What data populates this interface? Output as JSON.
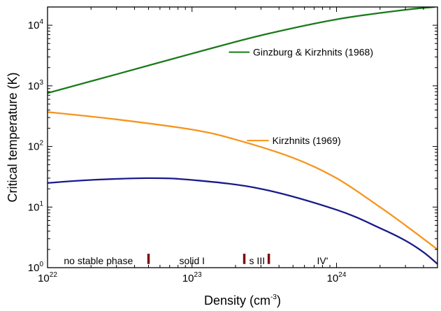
{
  "chart_data": {
    "type": "line",
    "xlabel": "Density (cm",
    "xlabel_exp": "-3",
    "xlabel_close": ")",
    "ylabel": "Critical temperature (K)",
    "x_scale": "log",
    "y_scale": "log",
    "xlim": [
      1e+22,
      5e+24
    ],
    "ylim": [
      1,
      20000
    ],
    "x_ticks": [
      {
        "value": 1e+22,
        "base": "10",
        "exp": "22"
      },
      {
        "value": 1e+23,
        "base": "10",
        "exp": "23"
      },
      {
        "value": 1e+24,
        "base": "10",
        "exp": "24"
      }
    ],
    "y_ticks": [
      {
        "value": 1,
        "base": "10",
        "exp": "0"
      },
      {
        "value": 10,
        "base": "10",
        "exp": "1"
      },
      {
        "value": 100,
        "base": "10",
        "exp": "2"
      },
      {
        "value": 1000,
        "base": "10",
        "exp": "3"
      },
      {
        "value": 10000,
        "base": "10",
        "exp": "4"
      }
    ],
    "series": [
      {
        "color": "#1a7a1a",
        "x": [
          1e+22,
          3e+22,
          1e+23,
          3e+23,
          1e+24,
          3e+24,
          4.8e+24
        ],
        "y": [
          760,
          1550,
          3400,
          6800,
          12500,
          18000,
          20000
        ]
      },
      {
        "color": "#f7941d",
        "x": [
          1e+22,
          3e+22,
          1e+23,
          2e+23,
          5e+23,
          1e+24,
          2e+24,
          3e+24,
          5e+24
        ],
        "y": [
          370,
          280,
          190,
          130,
          65,
          30,
          10,
          5,
          2
        ]
      },
      {
        "color": "#1a1a8a",
        "x": [
          1e+22,
          2e+22,
          5e+22,
          1e+23,
          3e+23,
          1e+24,
          2e+24,
          3e+24,
          4e+24,
          5e+24
        ],
        "y": [
          25,
          28,
          30,
          28,
          20,
          9,
          4.5,
          2.8,
          1.8,
          1.15
        ]
      }
    ],
    "annotations": [
      {
        "text": "Ginzburg & Kirzhnits (1968)",
        "leader_x": [
          1.8e+23,
          2.5e+23
        ],
        "leader_y": 3600,
        "color": "#1a7a1a"
      },
      {
        "text": "Kirzhnits (1969)",
        "leader_x": [
          2.4e+23,
          3.4e+23
        ],
        "leader_y": 125,
        "color": "#f7941d"
      }
    ],
    "phase_boundaries": {
      "color": "#7a1010",
      "x": [
        5e+22,
        2.3e+23,
        3.4e+23
      ],
      "y_range": [
        1.15,
        1.7
      ]
    },
    "phase_labels": [
      {
        "text": "no stable phase",
        "x": 2.25e+22
      },
      {
        "text": "solid I",
        "x": 1e+23
      },
      {
        "text": "s III",
        "x": 2.82e+23
      },
      {
        "text": "IV'",
        "x": 8e+23
      }
    ],
    "phase_label_y": 1.3
  }
}
